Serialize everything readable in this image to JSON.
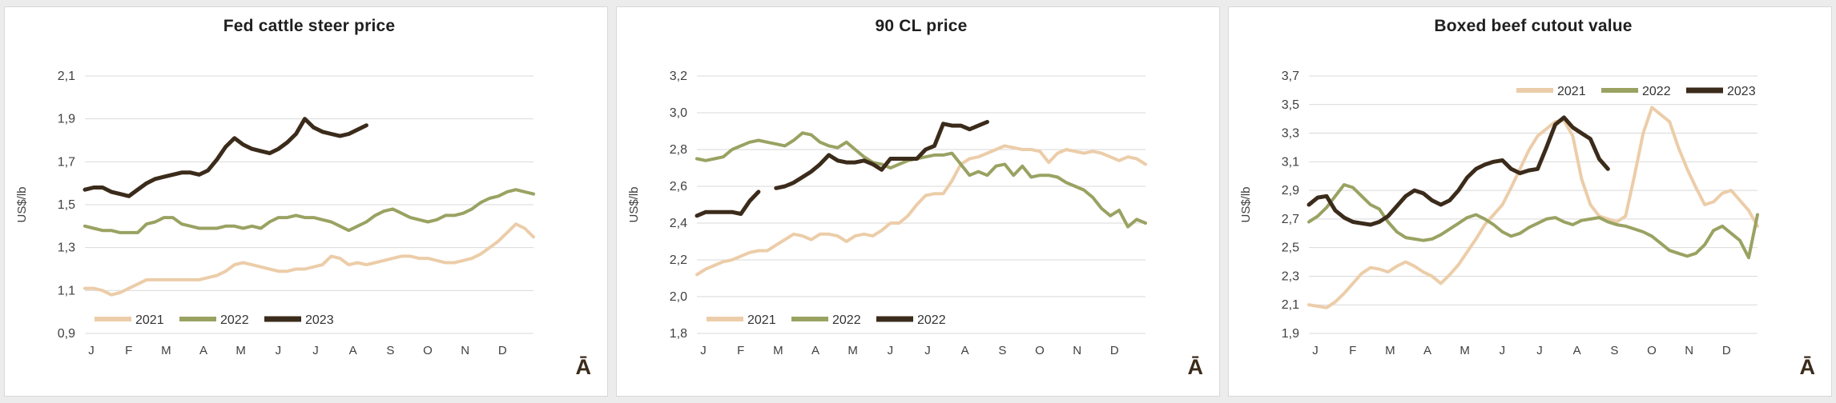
{
  "page": {
    "background_color": "#ececec",
    "panel_background": "#ffffff",
    "grid_color": "#d9d9d9",
    "axis_text_color": "#404040",
    "title_color": "#1f1f1f",
    "corner_symbol_color": "#3b2b1b"
  },
  "chart_data": [
    {
      "type": "line",
      "title": "Fed cattle steer price",
      "ylabel": "US$/lb",
      "xlabel": "",
      "ylim": [
        0.9,
        2.1
      ],
      "y_ticks": [
        "0,9",
        "1,1",
        "1,3",
        "1,5",
        "1,7",
        "1,9",
        "2,1"
      ],
      "x_tick_labels": [
        "J",
        "F",
        "M",
        "A",
        "M",
        "J",
        "J",
        "A",
        "S",
        "O",
        "N",
        "D"
      ],
      "weeks_per_year": 52,
      "grid": true,
      "legend_position": "bottom-left",
      "corner_symbol": "Ā",
      "series": [
        {
          "name": "2021",
          "color": "#eccda9",
          "width": 4,
          "values": [
            1.11,
            1.11,
            1.1,
            1.08,
            1.09,
            1.11,
            1.13,
            1.15,
            1.15,
            1.15,
            1.15,
            1.15,
            1.15,
            1.15,
            1.16,
            1.17,
            1.19,
            1.22,
            1.23,
            1.22,
            1.21,
            1.2,
            1.19,
            1.19,
            1.2,
            1.2,
            1.21,
            1.22,
            1.26,
            1.25,
            1.22,
            1.23,
            1.22,
            1.23,
            1.24,
            1.25,
            1.26,
            1.26,
            1.25,
            1.25,
            1.24,
            1.23,
            1.23,
            1.24,
            1.25,
            1.27,
            1.3,
            1.33,
            1.37,
            1.41,
            1.39,
            1.35
          ]
        },
        {
          "name": "2022",
          "color": "#9aa262",
          "width": 4,
          "values": [
            1.4,
            1.39,
            1.38,
            1.38,
            1.37,
            1.37,
            1.37,
            1.41,
            1.42,
            1.44,
            1.44,
            1.41,
            1.4,
            1.39,
            1.39,
            1.39,
            1.4,
            1.4,
            1.39,
            1.4,
            1.39,
            1.42,
            1.44,
            1.44,
            1.45,
            1.44,
            1.44,
            1.43,
            1.42,
            1.4,
            1.38,
            1.4,
            1.42,
            1.45,
            1.47,
            1.48,
            1.46,
            1.44,
            1.43,
            1.42,
            1.43,
            1.45,
            1.45,
            1.46,
            1.48,
            1.51,
            1.53,
            1.54,
            1.56,
            1.57,
            1.56,
            1.55
          ]
        },
        {
          "name": "2023",
          "color": "#3b2b1b",
          "width": 5,
          "values": [
            1.57,
            1.58,
            1.58,
            1.56,
            1.55,
            1.54,
            1.57,
            1.6,
            1.62,
            1.63,
            1.64,
            1.65,
            1.65,
            1.64,
            1.66,
            1.71,
            1.77,
            1.81,
            1.78,
            1.76,
            1.75,
            1.74,
            1.76,
            1.79,
            1.83,
            1.9,
            1.86,
            1.84,
            1.83,
            1.82,
            1.83,
            1.85,
            1.87
          ]
        }
      ]
    },
    {
      "type": "line",
      "title": "90 CL price",
      "ylabel": "US$/lb",
      "xlabel": "",
      "ylim": [
        1.8,
        3.2
      ],
      "y_ticks": [
        "1,8",
        "2,0",
        "2,2",
        "2,4",
        "2,6",
        "2,8",
        "3,0",
        "3,2"
      ],
      "x_tick_labels": [
        "J",
        "F",
        "M",
        "A",
        "M",
        "J",
        "J",
        "A",
        "S",
        "O",
        "N",
        "D"
      ],
      "weeks_per_year": 52,
      "grid": true,
      "legend_position": "bottom-left",
      "corner_symbol": "Ā",
      "series": [
        {
          "name": "2021",
          "color": "#eccda9",
          "width": 4,
          "values": [
            2.12,
            2.15,
            2.17,
            2.19,
            2.2,
            2.22,
            2.24,
            2.25,
            2.25,
            2.28,
            2.31,
            2.34,
            2.33,
            2.31,
            2.34,
            2.34,
            2.33,
            2.3,
            2.33,
            2.34,
            2.33,
            2.36,
            2.4,
            2.4,
            2.44,
            2.5,
            2.55,
            2.56,
            2.56,
            2.63,
            2.72,
            2.75,
            2.76,
            2.78,
            2.8,
            2.82,
            2.81,
            2.8,
            2.8,
            2.79,
            2.73,
            2.78,
            2.8,
            2.79,
            2.78,
            2.79,
            2.78,
            2.76,
            2.74,
            2.76,
            2.75,
            2.72
          ]
        },
        {
          "name": "2022",
          "color": "#9aa262",
          "width": 4,
          "values": [
            2.75,
            2.74,
            2.75,
            2.76,
            2.8,
            2.82,
            2.84,
            2.85,
            2.84,
            2.83,
            2.82,
            2.85,
            2.89,
            2.88,
            2.84,
            2.82,
            2.81,
            2.84,
            2.8,
            2.76,
            2.73,
            2.72,
            2.7,
            2.72,
            2.74,
            2.75,
            2.76,
            2.77,
            2.77,
            2.78,
            2.72,
            2.66,
            2.68,
            2.66,
            2.71,
            2.72,
            2.66,
            2.71,
            2.65,
            2.66,
            2.66,
            2.65,
            2.62,
            2.6,
            2.58,
            2.54,
            2.48,
            2.44,
            2.47,
            2.38,
            2.42,
            2.4
          ]
        },
        {
          "name": "2022",
          "color": "#3b2b1b",
          "width": 5,
          "values": [
            2.44,
            2.46,
            2.46,
            2.46,
            2.46,
            2.45,
            2.52,
            2.57,
            null,
            2.59,
            2.6,
            2.62,
            2.65,
            2.68,
            2.72,
            2.77,
            2.74,
            2.73,
            2.73,
            2.74,
            2.72,
            2.69,
            2.75,
            2.75,
            2.75,
            2.75,
            2.8,
            2.82,
            2.94,
            2.93,
            2.93,
            2.91,
            2.93,
            2.95
          ]
        }
      ]
    },
    {
      "type": "line",
      "title": "Boxed beef cutout value",
      "ylabel": "US$/lb",
      "xlabel": "",
      "ylim": [
        1.9,
        3.7
      ],
      "y_ticks": [
        "1,9",
        "2,1",
        "2,3",
        "2,5",
        "2,7",
        "2,9",
        "3,1",
        "3,3",
        "3,5",
        "3,7"
      ],
      "x_tick_labels": [
        "J",
        "F",
        "M",
        "A",
        "M",
        "J",
        "J",
        "A",
        "S",
        "O",
        "N",
        "D"
      ],
      "weeks_per_year": 52,
      "grid": true,
      "legend_position": "top-right",
      "corner_symbol": "Ā",
      "series": [
        {
          "name": "2021",
          "color": "#eccda9",
          "width": 4,
          "values": [
            2.1,
            2.09,
            2.08,
            2.12,
            2.18,
            2.25,
            2.32,
            2.36,
            2.35,
            2.33,
            2.37,
            2.4,
            2.37,
            2.33,
            2.3,
            2.25,
            2.31,
            2.38,
            2.47,
            2.56,
            2.66,
            2.73,
            2.8,
            2.92,
            3.05,
            3.18,
            3.28,
            3.33,
            3.38,
            3.39,
            3.28,
            2.98,
            2.8,
            2.72,
            2.7,
            2.68,
            2.72,
            3.0,
            3.3,
            3.48,
            3.43,
            3.38,
            3.2,
            3.05,
            2.92,
            2.8,
            2.82,
            2.88,
            2.9,
            2.83,
            2.76,
            2.65
          ]
        },
        {
          "name": "2022",
          "color": "#9aa262",
          "width": 4,
          "values": [
            2.68,
            2.72,
            2.78,
            2.86,
            2.94,
            2.92,
            2.86,
            2.8,
            2.77,
            2.68,
            2.61,
            2.57,
            2.56,
            2.55,
            2.56,
            2.59,
            2.63,
            2.67,
            2.71,
            2.73,
            2.7,
            2.66,
            2.61,
            2.58,
            2.6,
            2.64,
            2.67,
            2.7,
            2.71,
            2.68,
            2.66,
            2.69,
            2.7,
            2.71,
            2.68,
            2.66,
            2.65,
            2.63,
            2.61,
            2.58,
            2.53,
            2.48,
            2.46,
            2.44,
            2.46,
            2.52,
            2.62,
            2.65,
            2.6,
            2.55,
            2.43,
            2.73
          ]
        },
        {
          "name": "2023",
          "color": "#3b2b1b",
          "width": 5,
          "values": [
            2.8,
            2.85,
            2.86,
            2.76,
            2.71,
            2.68,
            2.67,
            2.66,
            2.68,
            2.72,
            2.79,
            2.86,
            2.9,
            2.88,
            2.83,
            2.8,
            2.83,
            2.9,
            2.99,
            3.05,
            3.08,
            3.1,
            3.11,
            3.05,
            3.02,
            3.04,
            3.05,
            3.2,
            3.36,
            3.41,
            3.34,
            3.3,
            3.26,
            3.12,
            3.05
          ]
        }
      ]
    }
  ]
}
